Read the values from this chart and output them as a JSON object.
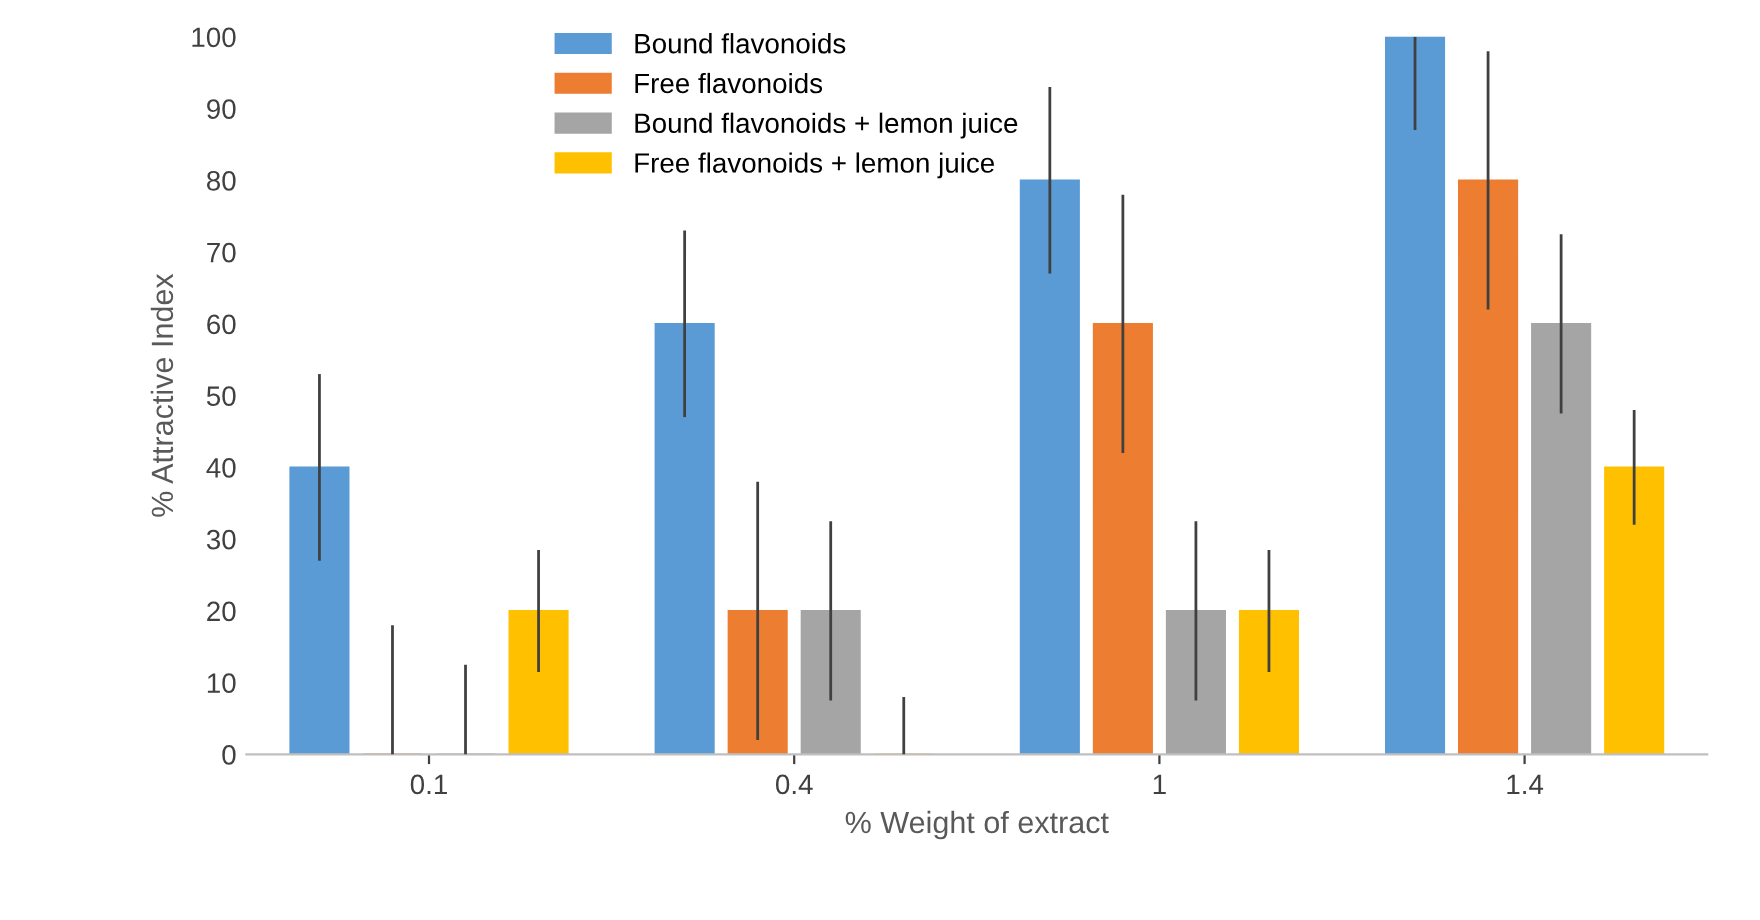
{
  "chart_data": {
    "type": "bar",
    "xlabel": "% Weight of extract",
    "ylabel": "% Attractive Index",
    "categories": [
      "0.1",
      "0.4",
      "1",
      "1.4"
    ],
    "series": [
      {
        "name": "Bound flavonoids",
        "color": "#5b9bd5",
        "values": [
          40,
          60,
          80,
          100
        ],
        "errors": [
          [
            27,
            53
          ],
          [
            47,
            73
          ],
          [
            67,
            93
          ],
          [
            87,
            100
          ]
        ]
      },
      {
        "name": "Free flavonoids",
        "color": "#ed7d31",
        "values": [
          0,
          20,
          60,
          80
        ],
        "errors": [
          [
            0,
            18
          ],
          [
            2,
            38
          ],
          [
            42,
            78
          ],
          [
            62,
            98
          ]
        ]
      },
      {
        "name": "Bound flavonoids + lemon juice",
        "color": "#a5a5a5",
        "values": [
          0,
          20,
          20,
          60
        ],
        "errors": [
          [
            0,
            12.5
          ],
          [
            7.5,
            32.5
          ],
          [
            7.5,
            32.5
          ],
          [
            47.5,
            72.5
          ]
        ]
      },
      {
        "name": "Free flavonoids + lemon juice",
        "color": "#ffc000",
        "values": [
          20,
          0,
          20,
          40
        ],
        "errors": [
          [
            11.5,
            28.5
          ],
          [
            0,
            8
          ],
          [
            11.5,
            28.5
          ],
          [
            32,
            48
          ]
        ]
      }
    ],
    "ylim": [
      0,
      100
    ],
    "yticks": [
      0,
      10,
      20,
      30,
      40,
      50,
      60,
      70,
      80,
      90,
      100
    ],
    "grid": false,
    "legend": "top"
  }
}
